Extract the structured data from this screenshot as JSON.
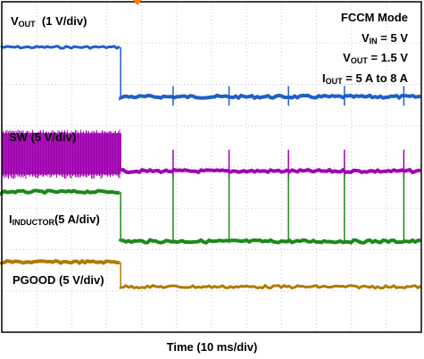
{
  "chart_data": {
    "type": "line",
    "title": "FCCM Mode",
    "conditions": [
      {
        "symbol": "V",
        "sub": "IN",
        "text": "= 5 V"
      },
      {
        "symbol": "V",
        "sub": "OUT",
        "text": "= 1.5 V"
      },
      {
        "symbol": "I",
        "sub": "OUT",
        "text": "= 5 A to 8 A"
      }
    ],
    "xlabel": "Time  (10 ms/div)",
    "grid": true,
    "x_divisions": 10,
    "y_divisions": 8,
    "step_time_div": 3.4,
    "channels": [
      {
        "name": "V",
        "sub": "OUT",
        "scale": "(1 V/div)",
        "color": "#1f5fc8",
        "level_before_div": 6.9,
        "level_after_div": 5.7,
        "spike_times_div": [
          4.9,
          6.5,
          8.2,
          9.8,
          11.5
        ]
      },
      {
        "name": "SW",
        "sub": "",
        "scale": "(5 V/div)",
        "color": "#a000b0",
        "level_before_div": 4.6,
        "level_after_div": 3.9,
        "spike_times_div": [
          4.9,
          6.5,
          8.2,
          9.8,
          11.5
        ]
      },
      {
        "name": "I",
        "sub": "INDUCTOR",
        "scale": "(5 A/div)",
        "color": "#1a8a1a",
        "level_before_div": 3.4,
        "level_after_div": 2.2,
        "spike_times_div": [
          4.9,
          6.5,
          8.2,
          9.8,
          11.5
        ]
      },
      {
        "name": "PGOOD",
        "sub": "",
        "scale": "(5 V/div)",
        "color": "#b07a00",
        "level_before_div": 1.7,
        "level_after_div": 1.1,
        "spike_times_div": []
      }
    ],
    "trigger_marker_color": "#ff7a00"
  }
}
